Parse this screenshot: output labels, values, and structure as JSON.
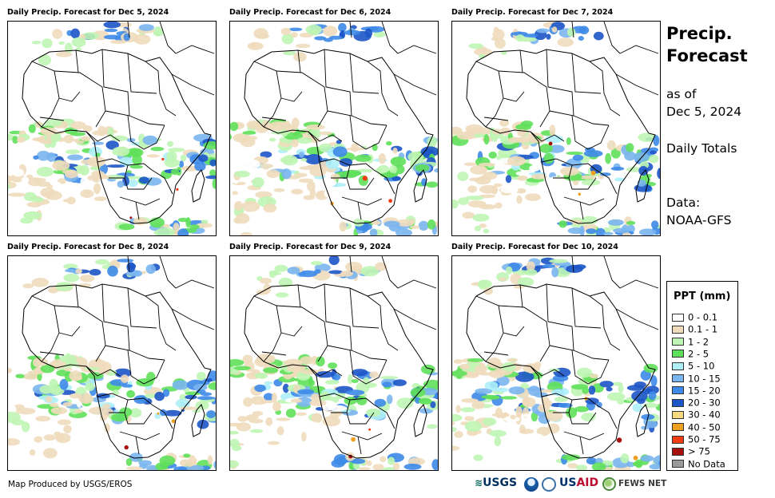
{
  "panels": [
    {
      "title": "Daily Precip. Forecast for Dec 5, 2024",
      "seed": 11
    },
    {
      "title": "Daily Precip. Forecast for Dec 6, 2024",
      "seed": 23
    },
    {
      "title": "Daily Precip. Forecast for Dec 7, 2024",
      "seed": 37
    },
    {
      "title": "Daily Precip. Forecast for Dec 8, 2024",
      "seed": 41
    },
    {
      "title": "Daily Precip. Forecast for Dec 9, 2024",
      "seed": 53
    },
    {
      "title": "Daily Precip. Forecast for Dec 10, 2024",
      "seed": 67
    }
  ],
  "sidebar": {
    "title_line1": "Precip.",
    "title_line2": "Forecast",
    "as_of_line1": "as of",
    "as_of_line2": "Dec 5, 2024",
    "totals": "Daily Totals",
    "data_line1": "Data:",
    "data_line2": "NOAA-GFS"
  },
  "legend": {
    "title": "PPT (mm)",
    "items": [
      {
        "label": "0 - 0.1",
        "color": "#ffffff"
      },
      {
        "label": "0.1 - 1",
        "color": "#f0dcbc"
      },
      {
        "label": "1 - 2",
        "color": "#bff5b4"
      },
      {
        "label": "2 - 5",
        "color": "#5fe05a"
      },
      {
        "label": "5 - 10",
        "color": "#aeeef7"
      },
      {
        "label": "10 - 15",
        "color": "#7ab5f0"
      },
      {
        "label": "15 - 20",
        "color": "#3d8ae8"
      },
      {
        "label": "20 - 30",
        "color": "#1c55c8"
      },
      {
        "label": "30 - 40",
        "color": "#f5da80"
      },
      {
        "label": "40 - 50",
        "color": "#f0a020"
      },
      {
        "label": "50 - 75",
        "color": "#f23c14"
      },
      {
        "label": "> 75",
        "color": "#a81010"
      },
      {
        "label": "No Data",
        "color": "#999999"
      }
    ]
  },
  "footer": {
    "credit": "Map Produced by USGS/EROS",
    "logos": {
      "usgs": "USGS",
      "usaid_a": "US",
      "usaid_b": "AID",
      "fews": "FEWS NET"
    }
  }
}
